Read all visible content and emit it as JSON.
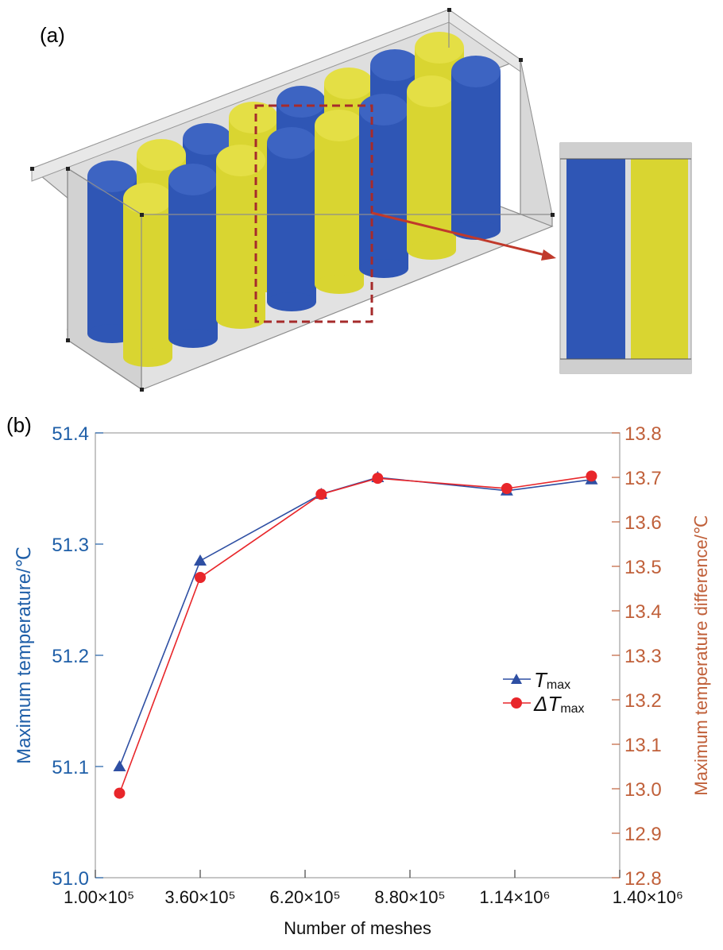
{
  "panel_a": {
    "label": "(a)",
    "colors": {
      "cell_a": "#2f56b5",
      "cell_b": "#d9d531",
      "frame": "#c0c0c0",
      "highlight": "#a62b2b",
      "arrow": "#c0392b"
    }
  },
  "chart_data": {
    "panel_label": "(b)",
    "type": "line",
    "title": "",
    "xlabel": "Number of meshes",
    "ylabel": "Maximum temperature/℃",
    "y2label": "Maximum temperature difference/℃",
    "x_ticks": [
      "1.00×10⁵",
      "3.60×10⁵",
      "6.20×10⁵",
      "8.80×10⁵",
      "1.14×10⁶",
      "1.40×10⁶"
    ],
    "x_tick_values": [
      100000,
      360000,
      620000,
      880000,
      1140000,
      1400000
    ],
    "xlim": [
      100000,
      1400000
    ],
    "ylim": [
      51.0,
      51.4
    ],
    "y_ticks": [
      51.0,
      51.1,
      51.2,
      51.3,
      51.4
    ],
    "y_tick_labels": [
      "51.0",
      "51.1",
      "51.2",
      "51.3",
      "51.4"
    ],
    "y2lim": [
      12.8,
      13.8
    ],
    "y2_ticks": [
      12.8,
      12.9,
      13.0,
      13.1,
      13.2,
      13.3,
      13.4,
      13.5,
      13.6,
      13.7,
      13.8
    ],
    "y2_tick_labels": [
      "12.8",
      "12.9",
      "13.0",
      "13.1",
      "13.2",
      "13.3",
      "13.4",
      "13.5",
      "13.6",
      "13.7",
      "13.8"
    ],
    "grid": false,
    "legend_position": "center-right",
    "colors": {
      "left_axis": "#1f5fa8",
      "right_axis": "#c0603a",
      "frame": "#a0a0a0"
    },
    "series": [
      {
        "name_main": "T",
        "name_sub": "max",
        "axis": "left",
        "marker": "triangle",
        "color": "#2e4fa3",
        "x": [
          160000,
          360000,
          660000,
          800000,
          1120000,
          1330000
        ],
        "values": [
          51.1,
          51.285,
          51.345,
          51.36,
          51.348,
          51.358
        ]
      },
      {
        "name_main": "ΔT",
        "name_sub": "max",
        "axis": "right",
        "marker": "circle",
        "color": "#e8262a",
        "x": [
          160000,
          360000,
          660000,
          800000,
          1120000,
          1330000
        ],
        "values": [
          12.99,
          13.475,
          13.662,
          13.698,
          13.675,
          13.703
        ]
      }
    ]
  }
}
